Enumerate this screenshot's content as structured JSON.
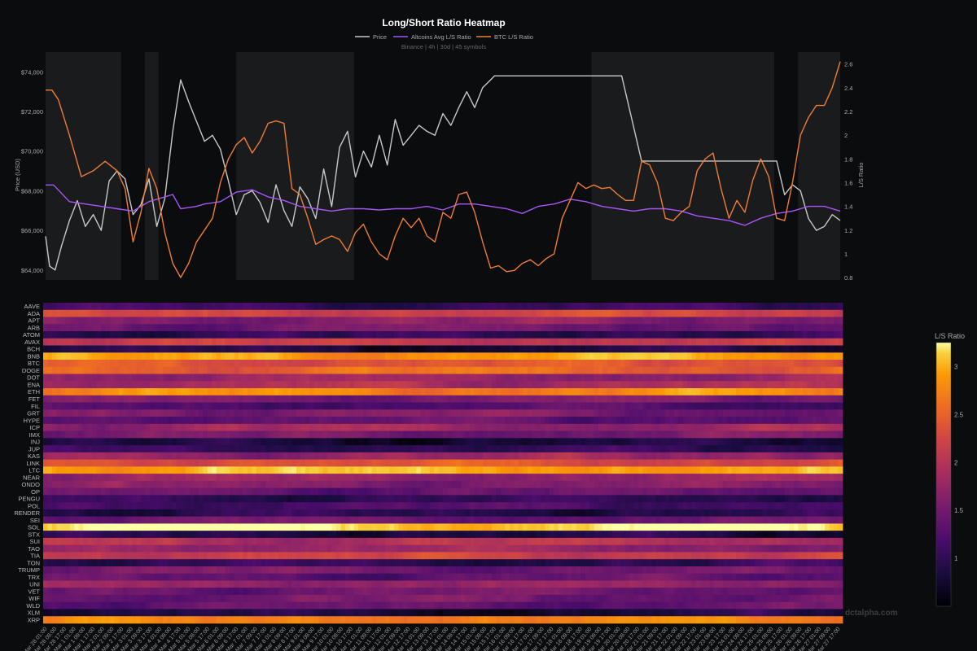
{
  "chart_data": [
    {
      "type": "line",
      "title": "Long/Short Ratio Heatmap",
      "subtitle": "Binance | 4h | 30d | 45 symbols",
      "ylabel": "Price (USD)",
      "y2label": "L/S Ratio",
      "ylim": [
        63500,
        75000
      ],
      "y2lim": [
        0.78,
        2.7
      ],
      "yticks": [
        "$64,000",
        "$66,000",
        "$68,000",
        "$70,000",
        "$72,000",
        "$74,000"
      ],
      "y2ticks": [
        "0.8",
        "1",
        "1.2",
        "1.4",
        "1.6",
        "1.8",
        "2",
        "2.2",
        "2.4",
        "2.6"
      ],
      "legend_placement": "top-center",
      "grid": false,
      "shaded_regions_x": [
        [
          0,
          0.095
        ],
        [
          0.125,
          0.142
        ],
        [
          0.24,
          0.388
        ],
        [
          0.687,
          0.917
        ],
        [
          0.947,
          1.0
        ]
      ],
      "series": [
        {
          "name": "Price",
          "color": "#c8c8c8",
          "axis": "left",
          "x": [
            0,
            0.005,
            0.012,
            0.02,
            0.03,
            0.04,
            0.05,
            0.06,
            0.07,
            0.08,
            0.09,
            0.1,
            0.11,
            0.12,
            0.13,
            0.14,
            0.15,
            0.16,
            0.17,
            0.18,
            0.19,
            0.2,
            0.21,
            0.22,
            0.23,
            0.24,
            0.25,
            0.26,
            0.27,
            0.28,
            0.29,
            0.3,
            0.31,
            0.32,
            0.33,
            0.34,
            0.35,
            0.36,
            0.37,
            0.38,
            0.39,
            0.4,
            0.41,
            0.42,
            0.43,
            0.44,
            0.45,
            0.46,
            0.47,
            0.48,
            0.49,
            0.5,
            0.51,
            0.52,
            0.53,
            0.54,
            0.55,
            0.56,
            0.565,
            0.7,
            0.725,
            0.75,
            0.9,
            0.92,
            0.93,
            0.94,
            0.95,
            0.96,
            0.97,
            0.98,
            0.99,
            1.0
          ],
          "values": [
            65700,
            64200,
            64000,
            65200,
            66500,
            67500,
            66200,
            66800,
            66000,
            68500,
            69000,
            68600,
            66800,
            67300,
            68600,
            66200,
            67600,
            71000,
            73600,
            72500,
            71500,
            70500,
            70800,
            70100,
            68500,
            66800,
            67800,
            68000,
            67400,
            66400,
            68300,
            67000,
            66200,
            68200,
            67600,
            66600,
            69100,
            67200,
            70200,
            71000,
            68700,
            70000,
            69200,
            70800,
            69300,
            71600,
            70300,
            70800,
            71300,
            71000,
            70800,
            71900,
            71300,
            72200,
            73000,
            72200,
            73200,
            73600,
            73800,
            73800,
            73800,
            69500,
            69500,
            69500,
            67800,
            68300,
            68000,
            66600,
            66000,
            66200,
            66800,
            66500
          ]
        },
        {
          "name": "Altcoins Avg L/S Ratio",
          "color": "#a855f7",
          "axis": "right",
          "x": [
            0,
            0.01,
            0.03,
            0.05,
            0.07,
            0.09,
            0.11,
            0.13,
            0.15,
            0.16,
            0.17,
            0.19,
            0.2,
            0.22,
            0.24,
            0.26,
            0.28,
            0.3,
            0.32,
            0.34,
            0.36,
            0.38,
            0.4,
            0.42,
            0.44,
            0.46,
            0.48,
            0.5,
            0.52,
            0.54,
            0.56,
            0.58,
            0.6,
            0.62,
            0.64,
            0.66,
            0.68,
            0.7,
            0.72,
            0.74,
            0.76,
            0.78,
            0.8,
            0.82,
            0.84,
            0.86,
            0.88,
            0.9,
            0.92,
            0.94,
            0.96,
            0.98,
            1.0
          ],
          "values": [
            1.58,
            1.58,
            1.44,
            1.42,
            1.4,
            1.38,
            1.36,
            1.44,
            1.48,
            1.5,
            1.38,
            1.4,
            1.42,
            1.44,
            1.52,
            1.54,
            1.48,
            1.45,
            1.4,
            1.38,
            1.36,
            1.38,
            1.38,
            1.37,
            1.38,
            1.38,
            1.4,
            1.37,
            1.42,
            1.42,
            1.4,
            1.38,
            1.34,
            1.4,
            1.42,
            1.46,
            1.44,
            1.4,
            1.38,
            1.36,
            1.38,
            1.38,
            1.36,
            1.32,
            1.3,
            1.28,
            1.24,
            1.3,
            1.34,
            1.36,
            1.4,
            1.4,
            1.36
          ]
        },
        {
          "name": "BTC L/S Ratio",
          "color": "#f07c34",
          "axis": "right",
          "x": [
            0,
            0.008,
            0.016,
            0.03,
            0.045,
            0.06,
            0.075,
            0.09,
            0.1,
            0.11,
            0.12,
            0.13,
            0.14,
            0.15,
            0.16,
            0.17,
            0.18,
            0.19,
            0.2,
            0.21,
            0.22,
            0.23,
            0.24,
            0.25,
            0.26,
            0.27,
            0.28,
            0.29,
            0.3,
            0.31,
            0.32,
            0.33,
            0.34,
            0.35,
            0.36,
            0.37,
            0.38,
            0.39,
            0.4,
            0.41,
            0.42,
            0.43,
            0.44,
            0.45,
            0.46,
            0.47,
            0.48,
            0.49,
            0.5,
            0.51,
            0.52,
            0.53,
            0.54,
            0.55,
            0.56,
            0.57,
            0.58,
            0.59,
            0.6,
            0.61,
            0.62,
            0.63,
            0.64,
            0.65,
            0.66,
            0.67,
            0.68,
            0.69,
            0.7,
            0.71,
            0.72,
            0.73,
            0.74,
            0.75,
            0.76,
            0.77,
            0.78,
            0.79,
            0.8,
            0.81,
            0.82,
            0.83,
            0.84,
            0.85,
            0.86,
            0.87,
            0.88,
            0.89,
            0.9,
            0.91,
            0.92,
            0.93,
            0.94,
            0.95,
            0.96,
            0.97,
            0.98,
            0.99,
            1.0
          ],
          "values": [
            2.38,
            2.38,
            2.3,
            2.0,
            1.65,
            1.7,
            1.78,
            1.7,
            1.55,
            1.1,
            1.35,
            1.72,
            1.55,
            1.18,
            0.92,
            0.8,
            0.92,
            1.1,
            1.2,
            1.3,
            1.6,
            1.8,
            1.92,
            1.98,
            1.85,
            1.95,
            2.1,
            2.12,
            2.1,
            1.55,
            1.5,
            1.3,
            1.08,
            1.12,
            1.15,
            1.12,
            1.02,
            1.18,
            1.25,
            1.1,
            1.0,
            0.95,
            1.15,
            1.3,
            1.22,
            1.3,
            1.15,
            1.1,
            1.35,
            1.3,
            1.5,
            1.52,
            1.35,
            1.1,
            0.88,
            0.9,
            0.85,
            0.86,
            0.92,
            0.95,
            0.9,
            0.96,
            1.0,
            1.3,
            1.45,
            1.6,
            1.55,
            1.58,
            1.55,
            1.56,
            1.5,
            1.45,
            1.45,
            1.78,
            1.75,
            1.6,
            1.3,
            1.28,
            1.35,
            1.4,
            1.7,
            1.8,
            1.85,
            1.55,
            1.3,
            1.45,
            1.35,
            1.62,
            1.8,
            1.65,
            1.3,
            1.28,
            1.6,
            2.0,
            2.15,
            2.25,
            2.25,
            2.4,
            2.62
          ]
        }
      ],
      "xlim": [
        0,
        1
      ]
    },
    {
      "type": "heatmap",
      "colorbar_title": "L/S Ratio",
      "colorbar_ticks": [
        "1",
        "1.5",
        "2",
        "2.5",
        "3"
      ],
      "zlim": [
        0.5,
        3.25
      ],
      "colorscale": "inferno",
      "symbols": [
        "AAVE",
        "ADA",
        "APT",
        "ARB",
        "ATOM",
        "AVAX",
        "BCH",
        "BNB",
        "BTC",
        "DOGE",
        "DOT",
        "ENA",
        "ETH",
        "FET",
        "FIL",
        "GRT",
        "HYPE",
        "ICP",
        "IMX",
        "INJ",
        "JUP",
        "KAS",
        "LINK",
        "LTC",
        "NEAR",
        "ONDO",
        "OP",
        "PENGU",
        "POL",
        "RENDER",
        "SEI",
        "SOL",
        "STX",
        "SUI",
        "TAO",
        "TIA",
        "TON",
        "TRUMP",
        "TRX",
        "UNI",
        "VET",
        "WIF",
        "WLD",
        "XLM",
        "XRP"
      ],
      "base_ratios": [
        1.05,
        2.2,
        1.65,
        1.45,
        1.05,
        2.1,
        0.85,
        2.9,
        2.4,
        2.55,
        1.75,
        1.9,
        2.75,
        1.5,
        1.2,
        1.55,
        1.35,
        1.8,
        1.5,
        0.8,
        1.0,
        1.8,
        2.35,
        3.0,
        1.75,
        1.6,
        1.4,
        1.0,
        1.2,
        0.95,
        1.45,
        3.2,
        0.85,
        2.0,
        1.75,
        2.15,
        1.05,
        1.5,
        1.35,
        1.75,
        1.45,
        1.45,
        1.35,
        0.85,
        2.7
      ],
      "x_labels": [
        "Mar 28 01:00",
        "Mar 28 09:00",
        "Mar 28 17:00",
        "Mar 1 01:00",
        "Mar 1 09:00",
        "Mar 1 17:00",
        "Mar 2 01:00",
        "Mar 2 09:00",
        "Mar 2 17:00",
        "Mar 3 01:00",
        "Mar 3 09:00",
        "Mar 3 17:00",
        "Mar 4 01:00",
        "Mar 4 09:00",
        "Mar 4 17:00",
        "Mar 5 01:00",
        "Mar 5 09:00",
        "Mar 5 17:00",
        "Mar 6 01:00",
        "Mar 6 09:00",
        "Mar 6 17:00",
        "Mar 7 01:00",
        "Mar 7 09:00",
        "Mar 7 17:00",
        "Mar 8 01:00",
        "Mar 8 09:00",
        "Mar 8 17:00",
        "Mar 9 01:00",
        "Mar 9 09:00",
        "Mar 9 17:00",
        "Mar 10 01:00",
        "Mar 10 09:00",
        "Mar 10 17:00",
        "Mar 11 01:00",
        "Mar 11 09:00",
        "Mar 11 17:00",
        "Mar 12 01:00",
        "Mar 12 09:00",
        "Mar 12 17:00",
        "Mar 13 01:00",
        "Mar 13 09:00",
        "Mar 13 17:00",
        "Mar 14 01:00",
        "Mar 14 09:00",
        "Mar 14 17:00",
        "Mar 15 01:00",
        "Mar 15 09:00",
        "Mar 15 17:00",
        "Mar 16 01:00",
        "Mar 16 09:00",
        "Mar 16 17:00",
        "Mar 17 01:00",
        "Mar 17 09:00",
        "Mar 17 17:00",
        "Mar 18 01:00",
        "Mar 18 09:00",
        "Mar 18 17:00",
        "Mar 19 01:00",
        "Mar 19 09:00",
        "Mar 19 17:00",
        "Mar 20 01:00",
        "Mar 20 09:00",
        "Mar 20 17:00",
        "Mar 21 01:00",
        "Mar 21 09:00",
        "Mar 21 17:00",
        "Mar 22 01:00",
        "Mar 22 09:00",
        "Mar 22 17:00",
        "Mar 23 01:00",
        "Mar 23 09:00",
        "Mar 23 17:00",
        "Mar 24 01:00",
        "Mar 24 09:00",
        "Mar 24 17:00",
        "Mar 25 01:00",
        "Mar 25 09:00",
        "Mar 25 17:00",
        "Mar 26 01:00",
        "Mar 26 09:00",
        "Mar 26 17:00",
        "Mar 27 01:00",
        "Mar 27 09:00",
        "Mar 27 17:00"
      ]
    }
  ],
  "watermark": "dctalpha.com",
  "colors": {
    "background": "#0b0c0d",
    "shade": "#1a1b1d",
    "price": "#c8c8c8",
    "altcoins": "#a855f7",
    "btc": "#f07c34"
  }
}
